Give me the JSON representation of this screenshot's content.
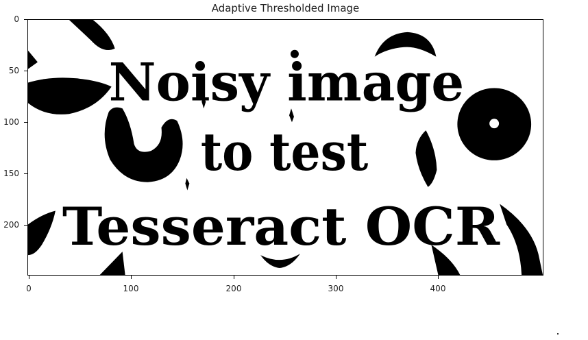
{
  "figure": {
    "title": "Adaptive Thresholded Image",
    "image_lines": [
      "Noisy image",
      "to test",
      "Tesseract OCR"
    ],
    "colors": {
      "foreground": "#000000",
      "background": "#ffffff"
    }
  },
  "axes": {
    "y_ticks": [
      "0",
      "50",
      "100",
      "150",
      "200"
    ],
    "x_ticks": [
      "0",
      "100",
      "200",
      "300",
      "400"
    ]
  }
}
